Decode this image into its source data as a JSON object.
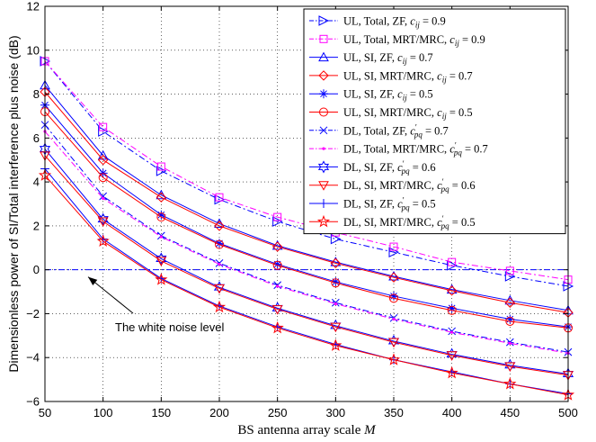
{
  "chart_data": {
    "type": "line",
    "xlabel": "BS antenna array scale M",
    "xlabel_main": "BS antenna array scale ",
    "xlabel_var": "M",
    "ylabel": "Dimensionless power of SI/Total interference plus noise (dB)",
    "xlim": [
      50,
      500
    ],
    "ylim": [
      -6,
      12
    ],
    "xticks": [
      50,
      100,
      150,
      200,
      250,
      300,
      350,
      400,
      450,
      500
    ],
    "yticks": [
      -6,
      -4,
      -2,
      0,
      2,
      4,
      6,
      8,
      10,
      12
    ],
    "grid": true,
    "legend_position": "top-right",
    "x": [
      50,
      100,
      150,
      200,
      250,
      300,
      350,
      400,
      450,
      500
    ],
    "series": [
      {
        "name": "UL, Total, ZF, c_ij = 0.9",
        "legend_main": "UL, Total, ZF, ",
        "legend_var": "c",
        "legend_sub": "ij",
        "legend_sup": "",
        "legend_val": " = 0.9",
        "color": "#0000ff",
        "dash": "dashdot",
        "marker": "triangle-right",
        "values": [
          9.5,
          6.3,
          4.5,
          3.2,
          2.2,
          1.4,
          0.8,
          0.2,
          -0.3,
          -0.75
        ]
      },
      {
        "name": "UL, Total, MRT/MRC, c_ij = 0.9",
        "legend_main": "UL, Total, MRT/MRC, ",
        "legend_var": "c",
        "legend_sub": "ij",
        "legend_sup": "",
        "legend_val": " = 0.9",
        "color": "#ff00ff",
        "dash": "dashdot",
        "marker": "square",
        "values": [
          9.5,
          6.5,
          4.7,
          3.3,
          2.4,
          1.7,
          1.05,
          0.35,
          -0.05,
          -0.45
        ]
      },
      {
        "name": "UL, SI, ZF, c_ij = 0.7",
        "legend_main": "UL, SI, ZF, ",
        "legend_var": "c",
        "legend_sub": "ij",
        "legend_sup": "",
        "legend_val": " = 0.7",
        "color": "#0000ff",
        "dash": "solid",
        "marker": "triangle-up",
        "values": [
          8.4,
          5.2,
          3.4,
          2.1,
          1.1,
          0.35,
          -0.3,
          -0.9,
          -1.4,
          -1.85
        ]
      },
      {
        "name": "UL, SI, MRT/MRC, c_ij = 0.7",
        "legend_main": "UL, SI, MRT/MRC, ",
        "legend_var": "c",
        "legend_sub": "ij",
        "legend_sup": "",
        "legend_val": " = 0.7",
        "color": "#ff0000",
        "dash": "solid",
        "marker": "diamond",
        "values": [
          8.1,
          5.0,
          3.3,
          2.0,
          1.05,
          0.3,
          -0.35,
          -0.95,
          -1.5,
          -1.95
        ]
      },
      {
        "name": "UL, SI, ZF, c_ij = 0.5",
        "legend_main": "UL, SI, ZF, ",
        "legend_var": "c",
        "legend_sub": "ij",
        "legend_sup": "",
        "legend_val": " = 0.5",
        "color": "#0000ff",
        "dash": "solid",
        "marker": "asterisk",
        "values": [
          7.5,
          4.4,
          2.5,
          1.2,
          0.25,
          -0.55,
          -1.2,
          -1.75,
          -2.25,
          -2.6
        ]
      },
      {
        "name": "UL, SI, MRT/MRC, c_ij = 0.5",
        "legend_main": "UL, SI, MRT/MRC, ",
        "legend_var": "c",
        "legend_sub": "ij",
        "legend_sup": "",
        "legend_val": " = 0.5",
        "color": "#ff0000",
        "dash": "solid",
        "marker": "circle",
        "values": [
          7.2,
          4.2,
          2.4,
          1.15,
          0.2,
          -0.6,
          -1.3,
          -1.85,
          -2.35,
          -2.65
        ]
      },
      {
        "name": "DL, Total, ZF, c'_pq = 0.7",
        "legend_main": "DL, Total, ZF, ",
        "legend_var": "c",
        "legend_sub": "pq",
        "legend_sup": "′",
        "legend_val": " = 0.7",
        "color": "#0000ff",
        "dash": "dashdot",
        "marker": "x",
        "values": [
          6.6,
          3.35,
          1.55,
          0.3,
          -0.7,
          -1.5,
          -2.2,
          -2.8,
          -3.3,
          -3.75
        ]
      },
      {
        "name": "DL, Total, MRT/MRC, c'_pq = 0.7",
        "legend_main": "DL, Total, MRT/MRC, ",
        "legend_var": "c",
        "legend_sub": "pq",
        "legend_sup": "′",
        "legend_val": " = 0.7",
        "color": "#ff00ff",
        "dash": "dashdot",
        "marker": "point",
        "values": [
          6.3,
          3.25,
          1.5,
          0.25,
          -0.75,
          -1.55,
          -2.25,
          -2.85,
          -3.35,
          -3.8
        ]
      },
      {
        "name": "DL, SI, ZF, c'_pq = 0.6",
        "legend_main": "DL, SI, ZF, ",
        "legend_var": "c",
        "legend_sub": "pq",
        "legend_sup": "′",
        "legend_val": " = 0.6",
        "color": "#0000ff",
        "dash": "solid",
        "marker": "hexagram",
        "values": [
          5.5,
          2.3,
          0.5,
          -0.8,
          -1.75,
          -2.55,
          -3.25,
          -3.85,
          -4.35,
          -4.75
        ]
      },
      {
        "name": "DL, SI, MRT/MRC, c'_pq = 0.6",
        "legend_main": "DL, SI, MRT/MRC, ",
        "legend_var": "c",
        "legend_sub": "pq",
        "legend_sup": "′",
        "legend_val": " = 0.6",
        "color": "#ff0000",
        "dash": "solid",
        "marker": "triangle-down",
        "values": [
          5.2,
          2.2,
          0.4,
          -0.85,
          -1.8,
          -2.6,
          -3.3,
          -3.9,
          -4.4,
          -4.8
        ]
      },
      {
        "name": "DL, SI, ZF, c'_pq = 0.5",
        "legend_main": "DL, SI, ZF, ",
        "legend_var": "c",
        "legend_sub": "pq",
        "legend_sup": "′",
        "legend_val": " = 0.5",
        "color": "#0000ff",
        "dash": "solid",
        "marker": "plus",
        "values": [
          4.6,
          1.4,
          -0.4,
          -1.65,
          -2.6,
          -3.4,
          -4.1,
          -4.65,
          -5.2,
          -5.65
        ]
      },
      {
        "name": "DL, SI, MRT/MRC, c'_pq = 0.5",
        "legend_main": "DL, SI, MRT/MRC, ",
        "legend_var": "c",
        "legend_sub": "pq",
        "legend_sup": "′",
        "legend_val": " = 0.5",
        "color": "#ff0000",
        "dash": "solid",
        "marker": "pentagram",
        "values": [
          4.3,
          1.3,
          -0.45,
          -1.7,
          -2.65,
          -3.45,
          -4.1,
          -4.7,
          -5.2,
          -5.7
        ]
      }
    ],
    "reference_line": {
      "y": 0,
      "color": "#0000ff",
      "dash": "dashdot"
    },
    "annotation": {
      "text": "The white noise level",
      "points_to": [
        50,
        0
      ]
    }
  }
}
